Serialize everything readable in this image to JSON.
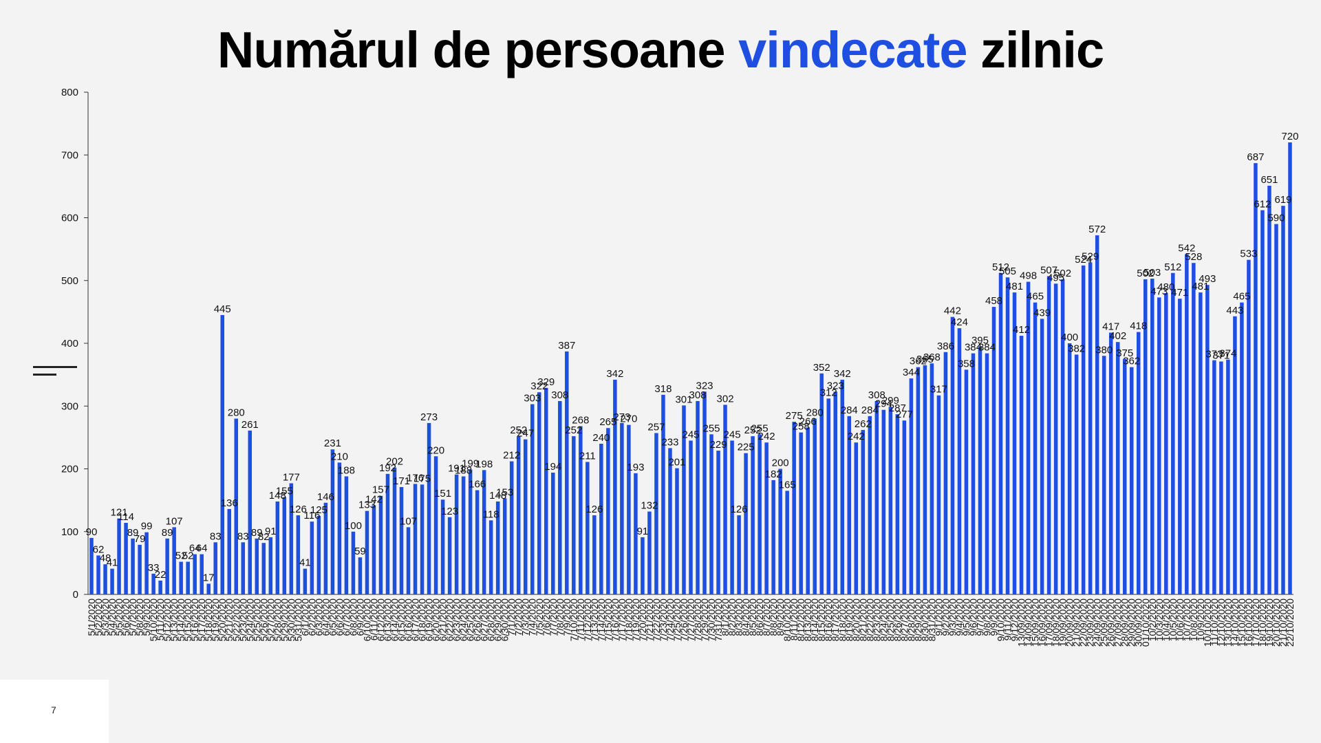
{
  "title": {
    "part1": "Numărul de persoane ",
    "highlight": "vindecate",
    "part2": " zilnic"
  },
  "page_number": "7",
  "colors": {
    "bar": "#1f4fe0",
    "highlight": "#1f4fe0",
    "title": "#000000"
  },
  "chart_data": {
    "type": "bar",
    "title": "Numărul de persoane vindecate zilnic",
    "ylim": [
      0,
      800
    ],
    "yticks": [
      0,
      100,
      200,
      300,
      400,
      500,
      600,
      700,
      800
    ],
    "grid": false,
    "categories": [
      "5/1/2020",
      "5/2/2020",
      "5/3/2020",
      "5/4/2020",
      "5/5/2020",
      "5/6/2020",
      "5/7/2020",
      "5/8/2020",
      "5/9/2020",
      "5/10/2020",
      "5/11/2020",
      "5/12/2020",
      "5/13/2020",
      "5/14/2020",
      "5/15/2020",
      "5/16/2020",
      "5/17/2020",
      "5/18/2020",
      "5/19/2020",
      "5/20/2020",
      "5/21/2020",
      "5/22/2020",
      "5/23/2020",
      "5/24/2020",
      "5/25/2020",
      "5/26/2020",
      "5/27/2020",
      "5/28/2020",
      "5/29/2020",
      "5/30/2020",
      "5/31/2020",
      "6/1/2020",
      "6/2/2020",
      "6/3/2020",
      "6/4/2020",
      "6/5/2020",
      "6/6/2020",
      "6/7/2020",
      "6/8/2020",
      "6/9/2020",
      "6/10/2020",
      "6/11/2020",
      "6/12/2020",
      "6/13/2020",
      "6/14/2020",
      "6/15/2020",
      "6/16/2020",
      "6/17/2020",
      "6/18/2020",
      "6/19/2020",
      "6/20/2020",
      "6/21/2020",
      "6/22/2020",
      "6/23/2020",
      "6/24/2020",
      "6/25/2020",
      "6/26/2020",
      "6/27/2020",
      "6/28/2020",
      "6/29/2020",
      "6/30/2020",
      "7/1/2020",
      "7/2/2020",
      "7/3/2020",
      "7/4/2020",
      "7/5/2020",
      "7/6/2020",
      "7/7/2020",
      "7/8/2020",
      "7/9/2020",
      "7/10/2020",
      "7/11/2020",
      "7/12/2020",
      "7/13/2020",
      "7/14/2020",
      "7/15/2020",
      "7/16/2020",
      "7/17/2020",
      "7/18/2020",
      "7/19/2020",
      "7/20/2020",
      "7/21/2020",
      "7/22/2020",
      "7/23/2020",
      "7/24/2020",
      "7/25/2020",
      "7/26/2020",
      "7/27/2020",
      "7/28/2020",
      "7/29/2020",
      "7/30/2020",
      "7/31/2020",
      "8/1/2020",
      "8/2/2020",
      "8/3/2020",
      "8/4/2020",
      "8/5/2020",
      "8/6/2020",
      "8/7/2020",
      "8/8/2020",
      "8/9/2020",
      "8/10/2020",
      "8/11/2020",
      "8/12/2020",
      "8/13/2020",
      "8/14/2020",
      "8/15/2020",
      "8/16/2020",
      "8/17/2020",
      "8/18/2020",
      "8/19/2020",
      "8/20/2020",
      "8/21/2020",
      "8/22/2020",
      "8/23/2020",
      "8/24/2020",
      "8/25/2020",
      "8/26/2020",
      "8/27/2020",
      "8/28/2020",
      "8/29/2020",
      "8/30/2020",
      "8/31/2020",
      "9/1/2020",
      "9/2/2020",
      "9/3/2020",
      "9/4/2020",
      "9/5/2020",
      "9/6/2020",
      "9/7/2020",
      "9/8/2020",
      "9/9/2020",
      "9/10/2020",
      "9/11/2020",
      "9/12/2020",
      "13/09/2020",
      "14/09/2020",
      "15/09/2020",
      "16/09/2020",
      "17/09/2020",
      "18/09/2020",
      "19/09/2020",
      "20/09/2020",
      "21/09/2020",
      "22/09/2020",
      "23/09/2020",
      "24/09/2020",
      "25/09/2020",
      "26/09/2020",
      "27/09/2020",
      "28/09/2020",
      "29/09/2020",
      "30/09/2020",
      "01/10/2020",
      "10/2/2020",
      "10/3/2020",
      "10/4/2020",
      "10/5/2020",
      "10/6/2020",
      "10/7/2020",
      "10/8/2020",
      "10/9/2020",
      "10/10/2020",
      "11/10/2020",
      "12/10/2020",
      "13/10/2020",
      "14/10/2020",
      "15/10/2020",
      "16/10/2020",
      "17/10/2020",
      "18/10/2020",
      "19/10/2020",
      "20/10/2020",
      "21/10/2020",
      "22/10/2020"
    ],
    "values": [
      90,
      62,
      48,
      41,
      121,
      114,
      89,
      79,
      99,
      33,
      22,
      89,
      107,
      52,
      52,
      64,
      64,
      17,
      83,
      445,
      136,
      280,
      83,
      261,
      89,
      82,
      91,
      148,
      155,
      177,
      126,
      41,
      116,
      125,
      146,
      231,
      210,
      188,
      100,
      59,
      133,
      142,
      157,
      192,
      202,
      171,
      107,
      176,
      175,
      273,
      220,
      151,
      123,
      191,
      188,
      199,
      166,
      198,
      118,
      148,
      153,
      212,
      252,
      247,
      303,
      322,
      329,
      194,
      308,
      387,
      252,
      268,
      211,
      126,
      240,
      265,
      342,
      273,
      270,
      193,
      91,
      132,
      257,
      318,
      233,
      201,
      301,
      245,
      308,
      323,
      255,
      229,
      302,
      245,
      126,
      225,
      252,
      255,
      242,
      182,
      200,
      165,
      275,
      258,
      266,
      280,
      352,
      312,
      323,
      342,
      284,
      242,
      262,
      284,
      308,
      294,
      299,
      287,
      277,
      344,
      362,
      365,
      368,
      317,
      386,
      442,
      424,
      358,
      384,
      395,
      384,
      458,
      512,
      505,
      481,
      412,
      498,
      465,
      439,
      507,
      495,
      502,
      400,
      382,
      524,
      529,
      572,
      380,
      417,
      402,
      375,
      362,
      418,
      502,
      503,
      473,
      480,
      512,
      471,
      542,
      528,
      481,
      493,
      373,
      371,
      374,
      443,
      465,
      533,
      687,
      612,
      651,
      590,
      619,
      720
    ]
  }
}
